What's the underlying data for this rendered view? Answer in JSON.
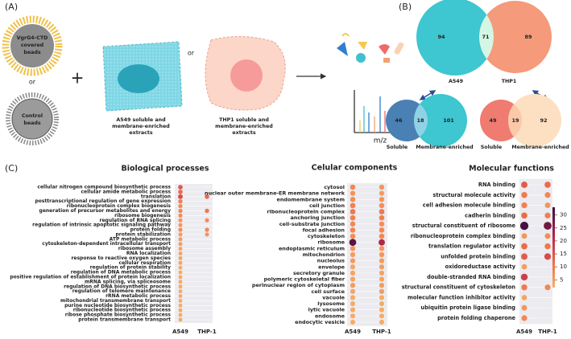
{
  "panel_a": {
    "label": "(A)",
    "bead": [
      "VgrG4-CTD",
      "covered",
      "beads"
    ],
    "or_1": "or",
    "control": [
      "Control",
      "beads"
    ],
    "plus": "+",
    "a549": [
      "A549 soluble and",
      "membrane-enriched",
      "extracts"
    ],
    "or_2": "or",
    "thp1": [
      "THP1 soluble and",
      "membrane-enriched",
      "extracts"
    ],
    "axis": "m/z"
  },
  "panel_b": {
    "label": "(B)",
    "top": {
      "left": "94",
      "both": "71",
      "right": "89",
      "left_name": "A549",
      "right_name": "THP1"
    },
    "a549": {
      "left": "46",
      "both": "18",
      "right": "101",
      "left_name": "Soluble",
      "right_name": "Membrane-enriched"
    },
    "thp1": {
      "left": "49",
      "both": "19",
      "right": "92",
      "left_name": "Soluble",
      "right_name": "Membrane-enriched"
    }
  },
  "panel_c": {
    "label": "(C)"
  },
  "dotplots": [
    {
      "title": "Biological processes",
      "columns": [
        "A549",
        "THP-1"
      ],
      "terms": [
        "cellular nitrogen compound biosynthetic process",
        "cellular amide metabolic process",
        "translation",
        "posttranscriptional regulation of gene expression",
        "ribonucleoprotein complex biogenesis",
        "generation of precursor metabolites and energy",
        "ribosome biogenesis",
        "regulation of RNA splicing",
        "regulation of intrinsic apoptotic signaling pathway",
        "protein folding",
        "protein stabilization",
        "ATP metabolic process",
        "cytoskeleton-dependent intracellular transport",
        "ribosome assembly",
        "RNA localization",
        "response to reactive oxygen species",
        "cellular respiration",
        "regulation of protein stability",
        "regulation of DNA metabolic process",
        "positive regulation of establishment of protein localization",
        "mRNA splicing, via spliceosome",
        "regulation of DNA biosynthetic process",
        "regulation of telomere maintenance",
        "rRNA metabolic process",
        "mitochondrial transmembrane transport",
        "purine nucleotide biosynthetic process",
        "ribonucleotide biosynthetic process",
        "ribose phosphate biosynthetic process",
        "protein transmembrane transport"
      ],
      "values": [
        [
          14,
          null
        ],
        [
          12,
          null
        ],
        [
          16,
          12
        ],
        [
          9,
          null
        ],
        [
          8,
          null
        ],
        [
          8,
          10
        ],
        [
          7,
          null
        ],
        [
          6,
          7
        ],
        [
          6,
          null
        ],
        [
          7,
          8
        ],
        [
          5,
          6
        ],
        [
          5,
          null
        ],
        [
          5,
          null
        ],
        [
          4,
          null
        ],
        [
          4,
          null
        ],
        [
          4,
          null
        ],
        [
          4,
          null
        ],
        [
          3,
          null
        ],
        [
          3,
          null
        ],
        [
          3,
          null
        ],
        [
          3,
          null
        ],
        [
          3,
          null
        ],
        [
          3,
          null
        ],
        [
          3,
          null
        ],
        [
          3,
          null
        ],
        [
          3,
          null
        ],
        [
          3,
          null
        ],
        [
          3,
          null
        ],
        [
          3,
          null
        ]
      ]
    },
    {
      "title": "Celular components",
      "columns": [
        "A549",
        "THP-1"
      ],
      "terms": [
        "cytosol",
        "nuclear outer membrane-ER membrane network",
        "endomembrane system",
        "cell junction",
        "ribonucleoprotein complex",
        "anchoring junction",
        "cell-substrate junction",
        "focal adhesion",
        "cytoskeleton",
        "ribosome",
        "endoplasmic reticulum",
        "mitochondrion",
        "nucleolus",
        "envelope",
        "secretory granule",
        "polymeric cytoskeletal fiber",
        "perinuclear region of cytoplasm",
        "cell surface",
        "vacuole",
        "lysosome",
        "lytic vacuole",
        "endosome",
        "endocytic vesicle"
      ],
      "values": [
        [
          8,
          6
        ],
        [
          6,
          5
        ],
        [
          7,
          6
        ],
        [
          9,
          7
        ],
        [
          10,
          10
        ],
        [
          9,
          9
        ],
        [
          8,
          7
        ],
        [
          8,
          8
        ],
        [
          7,
          8
        ],
        [
          30,
          22
        ],
        [
          6,
          6
        ],
        [
          5,
          6
        ],
        [
          5,
          5
        ],
        [
          4,
          5
        ],
        [
          4,
          4
        ],
        [
          4,
          4
        ],
        [
          5,
          5
        ],
        [
          4,
          5
        ],
        [
          3,
          3
        ],
        [
          3,
          3
        ],
        [
          3,
          3
        ],
        [
          3,
          3
        ],
        [
          3,
          3
        ]
      ]
    },
    {
      "title": "Molecular functions",
      "columns": [
        "A549",
        "THP-1"
      ],
      "terms": [
        "RNA binding",
        "structural molecule activity",
        "cell adhesion molecule binding",
        "cadherin binding",
        "structural constituent of ribosome",
        "ribonucleoprotein complex binding",
        "translation regulator activity",
        "unfolded protein binding",
        "oxidoreductase activity",
        "double-stranded RNA binding",
        "structural constituent of cytoskeleton",
        "molecular function inhibitor activity",
        "ubiquitin protein ligase binding",
        "protein folding chaperone"
      ],
      "values": [
        [
          14,
          12
        ],
        [
          10,
          8
        ],
        [
          9,
          6
        ],
        [
          12,
          9
        ],
        [
          32,
          28
        ],
        [
          6,
          7
        ],
        [
          12,
          10
        ],
        [
          14,
          16
        ],
        [
          5,
          null
        ],
        [
          18,
          null
        ],
        [
          10,
          8
        ],
        [
          4,
          null
        ],
        [
          6,
          null
        ],
        [
          8,
          null
        ]
      ]
    }
  ],
  "colorbar": {
    "lim": [
      2,
      33
    ],
    "ticks": [
      5,
      10,
      15,
      20,
      25,
      30
    ]
  }
}
